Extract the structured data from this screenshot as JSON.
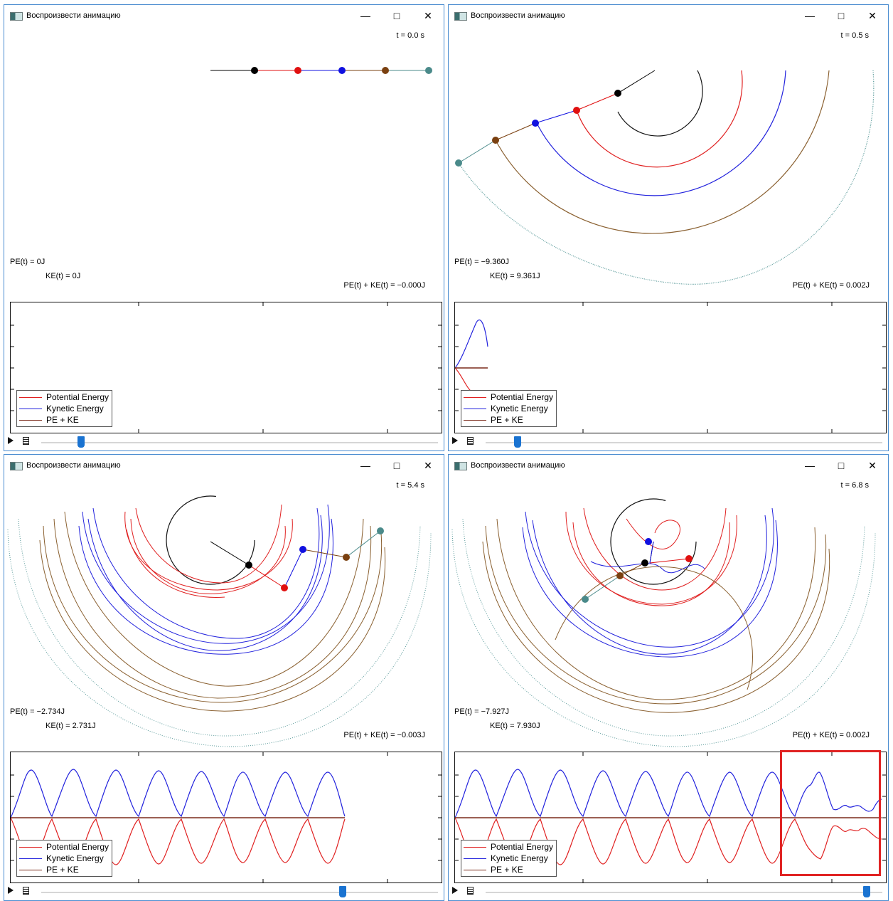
{
  "windows": [
    {
      "title": "Воспроизвести анимацию",
      "time": "t = 0.0 s",
      "pe": "PE(t) = 0J",
      "ke": "KE(t) = 0J",
      "total": "PE(t) + KE(t) = −0.000J",
      "slider_position": 0.1
    },
    {
      "title": "Воспроизвести анимацию",
      "time": "t = 0.5 s",
      "pe": "PE(t) = −9.360J",
      "ke": "KE(t) = 9.361J",
      "total": "PE(t) + KE(t) = 0.002J",
      "slider_position": 0.08
    },
    {
      "title": "Воспроизвести анимацию",
      "time": "t = 5.4 s",
      "pe": "PE(t) = −2.734J",
      "ke": "KE(t) = 2.731J",
      "total": "PE(t) + KE(t) = −0.003J",
      "slider_position": 0.76
    },
    {
      "title": "Воспроизвести анимацию",
      "time": "t = 6.8 s",
      "pe": "PE(t) = −7.927J",
      "ke": "KE(t) = 7.930J",
      "total": "PE(t) + KE(t) = 0.002J",
      "slider_position": 0.96
    }
  ],
  "legend": {
    "potential": "Potential Energy",
    "kinetic": "Kynetic Energy",
    "total": "PE + KE"
  },
  "colors": {
    "potential": "#e02020",
    "kinetic": "#2222dd",
    "total": "#7a2a1a",
    "pendulum": [
      "#000000",
      "#e01010",
      "#1010e0",
      "#7a4010",
      "#4a8a8a"
    ],
    "trace": [
      "#111111",
      "#e02020",
      "#2222dd",
      "#8a6030",
      "#5a9a9a"
    ],
    "highlight": "#e02424",
    "accent": "#1a73d1"
  },
  "icons": {
    "app": "app-window-icon",
    "play": "play-icon",
    "doc": "document-icon"
  }
}
